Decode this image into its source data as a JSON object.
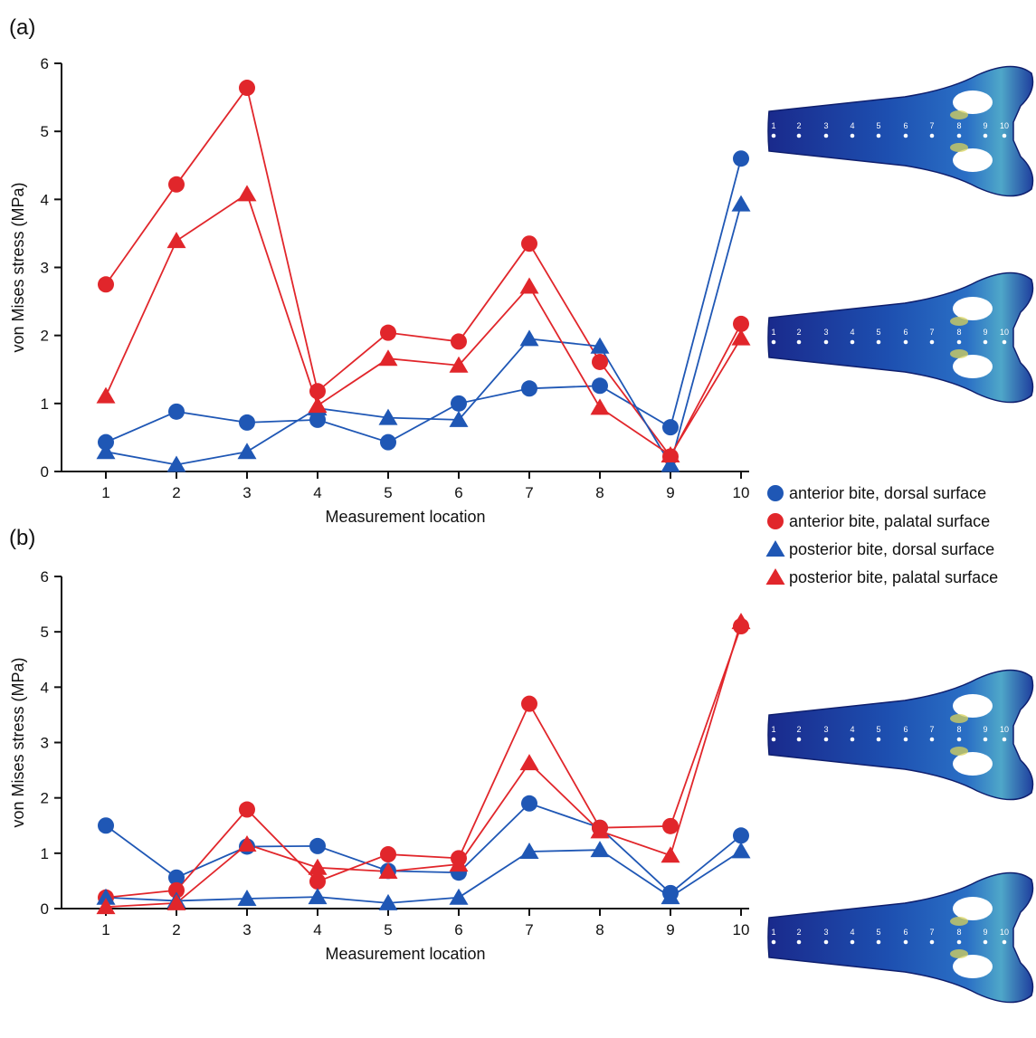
{
  "panels": {
    "a": {
      "label": "(a)"
    },
    "b": {
      "label": "(b)"
    }
  },
  "legend": [
    {
      "label": "anterior bite, dorsal surface",
      "color": "#1f57b5",
      "marker": "circle"
    },
    {
      "label": "anterior bite, palatal surface",
      "color": "#e1262b",
      "marker": "circle"
    },
    {
      "label": "posterior bite, dorsal surface",
      "color": "#1f57b5",
      "marker": "triangle"
    },
    {
      "label": "posterior bite, palatal surface",
      "color": "#e1262b",
      "marker": "triangle"
    }
  ],
  "skull_images": [
    {
      "name": "skull-a-dorsal-icon",
      "kind": "dorsal",
      "measurement_points": [
        "1",
        "2",
        "3",
        "4",
        "5",
        "6",
        "7",
        "8",
        "9",
        "10"
      ]
    },
    {
      "name": "skull-a-palatal-icon",
      "kind": "palatal",
      "measurement_points": [
        "1",
        "2",
        "3",
        "4",
        "5",
        "6",
        "7",
        "8",
        "9",
        "10"
      ]
    },
    {
      "name": "skull-b-dorsal-icon",
      "kind": "dorsal",
      "measurement_points": [
        "1",
        "2",
        "3",
        "4",
        "5",
        "6",
        "7",
        "8",
        "9",
        "10"
      ]
    },
    {
      "name": "skull-b-palatal-icon",
      "kind": "palatal",
      "measurement_points": [
        "1",
        "2",
        "3",
        "4",
        "5",
        "6",
        "7",
        "8",
        "9",
        "10"
      ]
    }
  ],
  "chart_data": [
    {
      "type": "line",
      "panel": "(a)",
      "x": [
        1,
        2,
        3,
        4,
        5,
        6,
        7,
        8,
        9,
        10
      ],
      "xlabel": "Measurement location",
      "ylabel": "von Mises stress (MPa)",
      "ylim": [
        0,
        6
      ],
      "yticks": [
        0,
        1,
        2,
        3,
        4,
        5,
        6
      ],
      "grid": false,
      "legend_position": "right",
      "series": [
        {
          "name": "anterior bite, dorsal surface",
          "color": "#1f57b5",
          "marker": "circle",
          "values": [
            0.43,
            0.88,
            0.72,
            0.76,
            0.43,
            1.0,
            1.22,
            1.26,
            0.65,
            4.6
          ]
        },
        {
          "name": "anterior bite, palatal surface",
          "color": "#e1262b",
          "marker": "circle",
          "values": [
            2.75,
            4.22,
            5.64,
            1.18,
            2.04,
            1.91,
            3.35,
            1.61,
            0.22,
            2.17
          ]
        },
        {
          "name": "posterior bite, dorsal surface",
          "color": "#1f57b5",
          "marker": "triangle",
          "values": [
            0.29,
            0.1,
            0.29,
            0.93,
            0.79,
            0.76,
            1.95,
            1.84,
            0.1,
            3.93
          ]
        },
        {
          "name": "posterior bite, palatal surface",
          "color": "#e1262b",
          "marker": "triangle",
          "values": [
            1.11,
            3.39,
            4.08,
            0.97,
            1.66,
            1.56,
            2.72,
            0.94,
            0.24,
            1.96
          ]
        }
      ]
    },
    {
      "type": "line",
      "panel": "(b)",
      "x": [
        1,
        2,
        3,
        4,
        5,
        6,
        7,
        8,
        9,
        10
      ],
      "xlabel": "Measurement location",
      "ylabel": "von Mises stress (MPa)",
      "ylim": [
        0,
        6
      ],
      "yticks": [
        0,
        1,
        2,
        3,
        4,
        5,
        6
      ],
      "grid": false,
      "series": [
        {
          "name": "anterior bite, dorsal surface",
          "color": "#1f57b5",
          "marker": "circle",
          "values": [
            1.5,
            0.56,
            1.12,
            1.13,
            0.68,
            0.65,
            1.9,
            1.46,
            0.28,
            1.32
          ]
        },
        {
          "name": "anterior bite, palatal surface",
          "color": "#e1262b",
          "marker": "circle",
          "values": [
            0.2,
            0.33,
            1.79,
            0.49,
            0.98,
            0.91,
            3.7,
            1.46,
            1.49,
            5.1
          ]
        },
        {
          "name": "posterior bite, dorsal surface",
          "color": "#1f57b5",
          "marker": "triangle",
          "values": [
            0.2,
            0.14,
            0.18,
            0.21,
            0.1,
            0.2,
            1.03,
            1.06,
            0.21,
            1.04
          ]
        },
        {
          "name": "posterior bite, palatal surface",
          "color": "#e1262b",
          "marker": "triangle",
          "values": [
            0.03,
            0.1,
            1.16,
            0.74,
            0.67,
            0.8,
            2.63,
            1.4,
            0.96,
            5.18
          ]
        }
      ]
    }
  ]
}
